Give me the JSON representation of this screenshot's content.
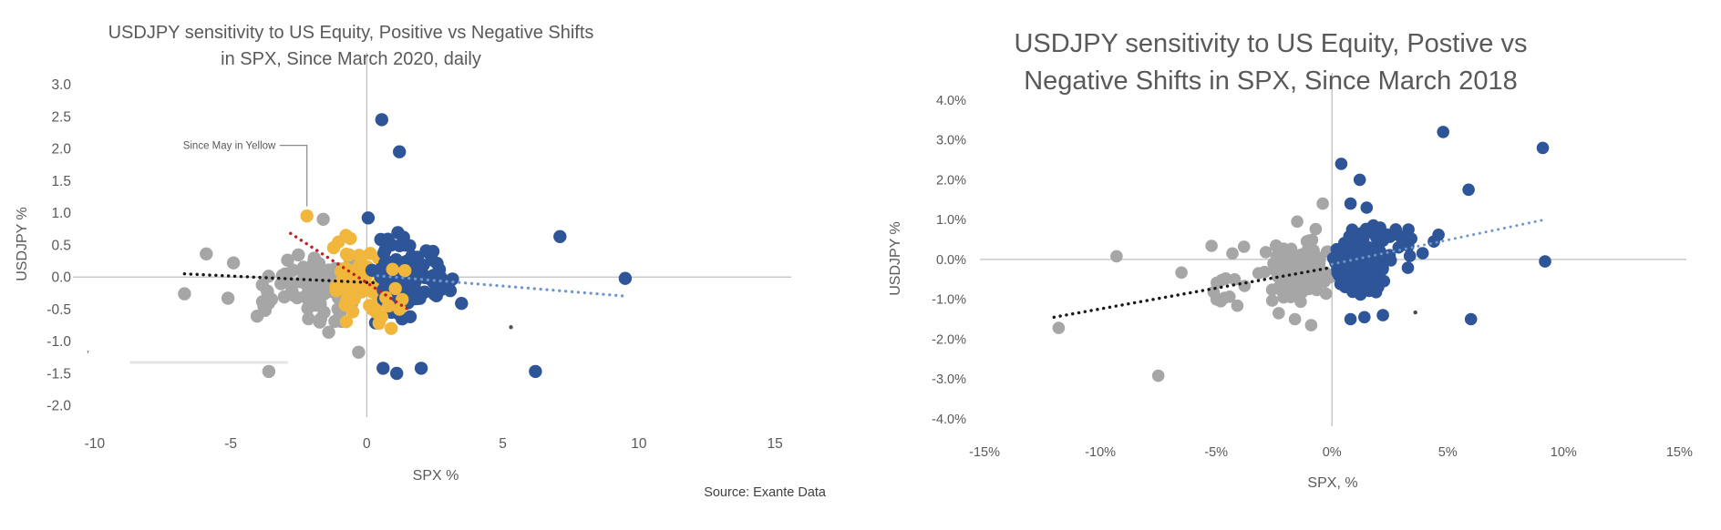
{
  "figure_title": "USDJPY sensitivity to US Equity scatter charts",
  "chart_data": [
    {
      "type": "scatter",
      "title_lines": [
        "USDJPY sensitivity to US Equity, Positive vs Negative Shifts",
        "in SPX, Since March 2020, daily"
      ],
      "xlabel": "SPX %",
      "ylabel": "USDJPY %",
      "source": "Source: Exante Data",
      "xlim": [
        -10.8,
        15.6
      ],
      "ylim": [
        -2.35,
        3.25
      ],
      "grid": false,
      "legend": null,
      "xticks": [
        {
          "v": -10,
          "label": "-10"
        },
        {
          "v": -5,
          "label": "-5"
        },
        {
          "v": 0,
          "label": "0"
        },
        {
          "v": 5,
          "label": "5"
        },
        {
          "v": 10,
          "label": "10"
        },
        {
          "v": 15,
          "label": "15"
        }
      ],
      "yticks": [
        {
          "v": 3.0,
          "label": "3.0"
        },
        {
          "v": 2.5,
          "label": "2.5"
        },
        {
          "v": 2.0,
          "label": "2.0"
        },
        {
          "v": 1.5,
          "label": "1.5"
        },
        {
          "v": 1.0,
          "label": "1.0"
        },
        {
          "v": 0.5,
          "label": "0.5"
        },
        {
          "v": 0.0,
          "label": "0.0"
        },
        {
          "v": -0.5,
          "label": "-0.5"
        },
        {
          "v": -1.0,
          "label": "-1.0"
        },
        {
          "v": -1.5,
          "label": "-1.5"
        },
        {
          "v": -2.0,
          "label": "-2.0"
        }
      ],
      "colors": {
        "gray": "#A6A6A6",
        "blue": "#2E5597",
        "yellow": "#F0B73C",
        "trend_black": "#1A1A1A",
        "trend_red": "#C02020",
        "trend_blue": "#6E96CB",
        "axis": "#BFBFBF",
        "text": "#595959"
      },
      "series": [
        {
          "name": "negative-spx-days",
          "color": "gray",
          "clusters": [
            {
              "seed": 11,
              "n": 80,
              "cx": -1.4,
              "cy": -0.12,
              "sx": 2.3,
              "sy": 0.78,
              "clipx": [
                -4.3,
                0.35
              ],
              "clipy": [
                -1.05,
                0.62
              ]
            },
            {
              "seed": 12,
              "n": 14,
              "cx": -3.2,
              "cy": -0.2,
              "sx": 1.7,
              "sy": 0.7,
              "clipx": [
                -6.2,
                -1.6
              ],
              "clipy": [
                -1.0,
                0.55
              ]
            }
          ],
          "points": [
            [
              -6.7,
              -0.26
            ],
            [
              -5.9,
              0.36
            ],
            [
              -5.1,
              -0.33
            ],
            [
              -4.9,
              0.22
            ],
            [
              -3.6,
              -1.47
            ],
            [
              -1.6,
              0.9
            ],
            [
              -0.3,
              -1.17
            ]
          ]
        },
        {
          "name": "since-may-2020",
          "color": "yellow",
          "clusters": [
            {
              "seed": 13,
              "n": 55,
              "cx": -0.25,
              "cy": -0.02,
              "sx": 1.5,
              "sy": 0.72,
              "clipx": [
                -2.0,
                1.45
              ],
              "clipy": [
                -0.78,
                0.78
              ]
            }
          ],
          "points": [
            [
              -2.2,
              0.95
            ]
          ]
        },
        {
          "name": "positive-spx-days",
          "color": "blue",
          "clusters": [
            {
              "seed": 14,
              "n": 115,
              "cx": 1.35,
              "cy": 0.03,
              "sx": 1.9,
              "sy": 0.95,
              "clipx": [
                0.18,
                3.6
              ],
              "clipy": [
                -0.95,
                1.02
              ]
            },
            {
              "seed": 15,
              "n": 10,
              "cx": 2.9,
              "cy": 0.0,
              "sx": 1.3,
              "sy": 0.65,
              "clipx": [
                1.7,
                4.3
              ],
              "clipy": [
                -0.6,
                0.7
              ]
            }
          ],
          "points": [
            [
              0.55,
              2.45
            ],
            [
              1.2,
              1.95
            ],
            [
              7.1,
              0.63
            ],
            [
              9.5,
              -0.02
            ],
            [
              6.2,
              -1.47
            ],
            [
              0.6,
              -1.42
            ],
            [
              1.1,
              -1.5
            ],
            [
              2.0,
              -1.42
            ],
            [
              0.05,
              0.92
            ]
          ]
        },
        {
          "name": "since-may-2020-front",
          "color": "yellow",
          "clusters": [],
          "points": [
            [
              0.9,
              -0.8
            ],
            [
              1.2,
              -0.5
            ],
            [
              0.35,
              -0.55
            ],
            [
              0.7,
              -0.32
            ],
            [
              0.55,
              -0.62
            ],
            [
              1.05,
              -0.18
            ],
            [
              0.8,
              -0.45
            ],
            [
              0.45,
              -0.72
            ],
            [
              1.3,
              -0.35
            ],
            [
              0.2,
              -0.5
            ],
            [
              0.95,
              0.12
            ],
            [
              1.4,
              0.1
            ]
          ]
        }
      ],
      "trendlines": [
        {
          "name": "negative-days-fit",
          "color": "trend_black",
          "w": 3.4,
          "from": [
            -6.7,
            0.05
          ],
          "to": [
            0.3,
            -0.09
          ]
        },
        {
          "name": "since-may-fit",
          "color": "trend_red",
          "w": 3.4,
          "from": [
            -2.8,
            0.68
          ],
          "to": [
            1.5,
            -0.5
          ]
        },
        {
          "name": "positive-days-fit",
          "color": "trend_blue",
          "w": 3.2,
          "from": [
            0.4,
            0.02
          ],
          "to": [
            9.6,
            -0.3
          ]
        }
      ],
      "annotation": {
        "text": "Since May in Yellow",
        "text_pos": [
          -3.35,
          2.05
        ],
        "leader": [
          [
            -3.2,
            2.05
          ],
          [
            -2.2,
            2.05
          ],
          [
            -2.2,
            1.1
          ]
        ],
        "target": [
          -2.2,
          0.95
        ]
      },
      "artifacts": [
        {
          "type": "streak",
          "from": [
            -8.7,
            -1.33
          ],
          "to": [
            -2.9,
            -1.33
          ],
          "color": "#E4E4E4"
        },
        {
          "type": "mark",
          "at": [
            -10.3,
            -1.28
          ],
          "text": "’",
          "color": "#6A6A6A"
        },
        {
          "type": "speck",
          "at": [
            5.3,
            -0.78
          ],
          "color": "#555555"
        }
      ]
    },
    {
      "type": "scatter",
      "title_lines": [
        "USDJPY sensitivity to US Equity, Postive vs",
        "Negative Shifts in SPX, Since March 2018"
      ],
      "xlabel": "SPX, %",
      "ylabel": "USDJPY %",
      "source": null,
      "xlim": [
        -15.2,
        15.3
      ],
      "ylim": [
        -4.3,
        4.5
      ],
      "grid": false,
      "legend": null,
      "xticks": [
        {
          "v": -15,
          "label": "-15%"
        },
        {
          "v": -10,
          "label": "-10%"
        },
        {
          "v": -5,
          "label": "-5%"
        },
        {
          "v": 0,
          "label": "0%"
        },
        {
          "v": 5,
          "label": "5%"
        },
        {
          "v": 10,
          "label": "10%"
        },
        {
          "v": 15,
          "label": "15%"
        }
      ],
      "yticks": [
        {
          "v": 4,
          "label": "4.0%"
        },
        {
          "v": 3,
          "label": "3.0%"
        },
        {
          "v": 2,
          "label": "2.0%"
        },
        {
          "v": 1,
          "label": "1.0%"
        },
        {
          "v": 0,
          "label": "0.0%"
        },
        {
          "v": -1,
          "label": "-1.0%"
        },
        {
          "v": -2,
          "label": "-2.0%"
        },
        {
          "v": -3,
          "label": "-3.0%"
        },
        {
          "v": -4,
          "label": "-4.0%"
        }
      ],
      "colors": {
        "gray": "#A6A6A6",
        "blue": "#2E5597",
        "yellow": "#F0B73C",
        "trend_black": "#1A1A1A",
        "trend_red": "#C02020",
        "trend_blue": "#6E96CB",
        "axis": "#BFBFBF",
        "text": "#595959"
      },
      "series": [
        {
          "name": "negative-spx-days",
          "color": "gray",
          "clusters": [
            {
              "seed": 21,
              "n": 165,
              "cx": -1.4,
              "cy": -0.3,
              "sx": 2.0,
              "sy": 1.0,
              "clipx": [
                -3.7,
                -0.05
              ],
              "clipy": [
                -1.55,
                0.52
              ]
            },
            {
              "seed": 22,
              "n": 9,
              "cx": -4.4,
              "cy": -0.5,
              "sx": 1.3,
              "sy": 0.8,
              "clipx": [
                -6.0,
                -3.3
              ],
              "clipy": [
                -1.3,
                0.35
              ]
            }
          ],
          "points": [
            [
              -11.8,
              -1.72
            ],
            [
              -9.3,
              0.08
            ],
            [
              -7.5,
              -2.92
            ],
            [
              -6.5,
              -0.33
            ],
            [
              -5.2,
              0.34
            ],
            [
              -4.3,
              0.15
            ],
            [
              -4.8,
              -1.05
            ],
            [
              -3.8,
              0.32
            ],
            [
              -4.2,
              -0.5
            ],
            [
              -0.4,
              1.4
            ],
            [
              -1.5,
              0.95
            ],
            [
              -0.7,
              0.76
            ],
            [
              -0.9,
              -1.65
            ],
            [
              -1.6,
              -1.5
            ],
            [
              -2.3,
              -1.35
            ]
          ]
        },
        {
          "name": "positive-spx-days",
          "color": "blue",
          "clusters": [
            {
              "seed": 23,
              "n": 185,
              "cx": 1.25,
              "cy": -0.1,
              "sx": 1.7,
              "sy": 1.15,
              "clipx": [
                0.05,
                3.3
              ],
              "clipy": [
                -1.35,
                1.15
              ]
            },
            {
              "seed": 24,
              "n": 10,
              "cx": 3.2,
              "cy": 0.2,
              "sx": 1.3,
              "sy": 0.8,
              "clipx": [
                2.2,
                4.7
              ],
              "clipy": [
                -0.5,
                0.9
              ]
            }
          ],
          "points": [
            [
              0.4,
              2.4
            ],
            [
              1.2,
              2.0
            ],
            [
              0.8,
              1.4
            ],
            [
              1.5,
              1.3
            ],
            [
              4.8,
              3.2
            ],
            [
              9.1,
              2.8
            ],
            [
              5.9,
              1.75
            ],
            [
              9.2,
              -0.05
            ],
            [
              6.0,
              -1.5
            ],
            [
              0.8,
              -1.5
            ],
            [
              1.4,
              -1.45
            ],
            [
              2.2,
              -1.4
            ],
            [
              3.3,
              0.75
            ],
            [
              4.4,
              0.45
            ],
            [
              4.6,
              0.62
            ]
          ]
        }
      ],
      "trendlines": [
        {
          "name": "negative-days-fit",
          "color": "trend_black",
          "w": 3.4,
          "from": [
            -12.0,
            -1.45
          ],
          "to": [
            0.0,
            -0.2
          ]
        },
        {
          "name": "positive-days-fit",
          "color": "trend_blue",
          "w": 3.0,
          "from": [
            0.0,
            -0.12
          ],
          "to": [
            9.2,
            1.0
          ]
        }
      ],
      "annotation": null,
      "artifacts": [
        {
          "type": "speck",
          "at": [
            3.6,
            -1.33
          ],
          "color": "#4A4A4A"
        }
      ]
    }
  ]
}
